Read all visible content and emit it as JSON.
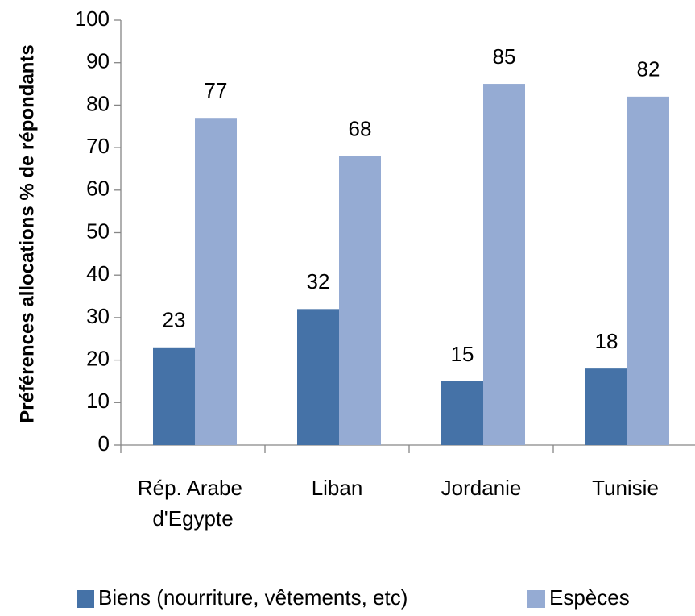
{
  "chart_data": {
    "type": "bar",
    "y_label": "Préférences allocations % de répondants",
    "categories": [
      "Rép. Arabe d'Egypte",
      "Liban",
      "Jordanie",
      "Tunisie"
    ],
    "series": [
      {
        "name": "Biens (nourriture, vêtements, etc)",
        "color": "#4572a7",
        "values": [
          23,
          32,
          15,
          18
        ]
      },
      {
        "name": "Espèces",
        "color": "#95abd3",
        "values": [
          77,
          68,
          85,
          82
        ]
      }
    ],
    "ylim": [
      0,
      100
    ],
    "yticks": [
      0,
      10,
      20,
      30,
      40,
      50,
      60,
      70,
      80,
      90,
      100
    ],
    "legend": "bottom"
  }
}
